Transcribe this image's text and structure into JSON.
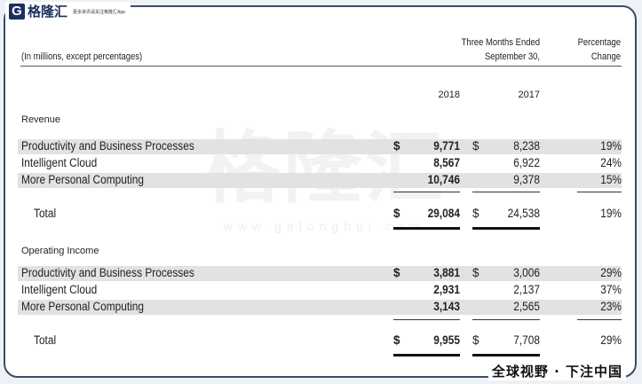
{
  "brand": {
    "logo_letter": "G",
    "logo_name": "格隆汇",
    "tagline": "更多资讯请关注格隆汇App"
  },
  "watermark": {
    "text": "格隆汇",
    "url": "www.gelonghui.com"
  },
  "table": {
    "units_note": "(In millions, except percentages)",
    "period_header_line1": "Three Months Ended",
    "period_header_line2": "September 30,",
    "change_header_line1": "Percentage",
    "change_header_line2": "Change",
    "year_current": "2018",
    "year_prior": "2017",
    "currency_symbol": "$",
    "sections": [
      {
        "title": "Revenue",
        "rows": [
          {
            "label": "Productivity and Business Processes",
            "v2018": "9,771",
            "v2017": "8,238",
            "change": "19%"
          },
          {
            "label": "Intelligent Cloud",
            "v2018": "8,567",
            "v2017": "6,922",
            "change": "24%"
          },
          {
            "label": "More Personal Computing",
            "v2018": "10,746",
            "v2017": "9,378",
            "change": "15%"
          }
        ],
        "total": {
          "label": "Total",
          "v2018": "29,084",
          "v2017": "24,538",
          "change": "19%"
        }
      },
      {
        "title": "Operating Income",
        "rows": [
          {
            "label": "Productivity and Business Processes",
            "v2018": "3,881",
            "v2017": "3,006",
            "change": "29%"
          },
          {
            "label": "Intelligent Cloud",
            "v2018": "2,931",
            "v2017": "2,137",
            "change": "37%"
          },
          {
            "label": "More Personal Computing",
            "v2018": "3,143",
            "v2017": "2,565",
            "change": "23%"
          }
        ],
        "total": {
          "label": "Total",
          "v2018": "9,955",
          "v2017": "7,708",
          "change": "29%"
        }
      }
    ]
  },
  "footer": {
    "slogan": "全球视野 · 下注中国"
  }
}
